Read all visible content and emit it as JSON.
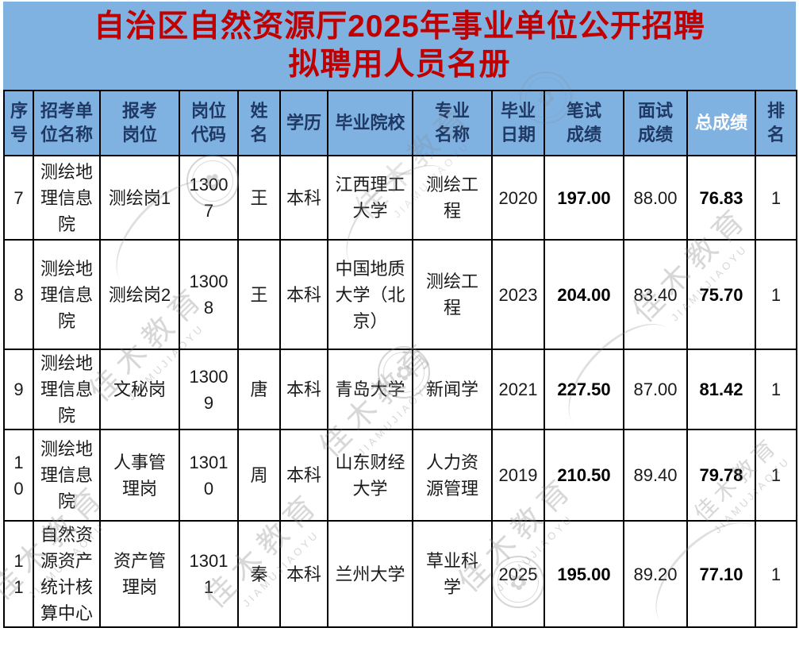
{
  "banner": {
    "line1": "自治区自然资源厅2025年事业单位公开招聘",
    "line2": "拟聘用人员名册"
  },
  "colors": {
    "background": "#7FB1E1",
    "title_text": "#C00000",
    "header_text": "#1F3864",
    "header_highlight_text": "#FFFFFF",
    "border": "#000000"
  },
  "watermark": {
    "cjk": "佳木教育",
    "latin": "JIAMUJIAOYU",
    "flower_icon": "✿"
  },
  "table": {
    "columns": [
      {
        "key": "xuhao",
        "label": "序\n号",
        "highlight": false,
        "bold_values": false
      },
      {
        "key": "unit",
        "label": "招考单\n位名称",
        "highlight": false,
        "bold_values": false
      },
      {
        "key": "position",
        "label": "报考\n岗位",
        "highlight": false,
        "bold_values": false
      },
      {
        "key": "code",
        "label": "岗位\n代码",
        "highlight": false,
        "bold_values": false
      },
      {
        "key": "name",
        "label": "姓名",
        "highlight": false,
        "bold_values": false
      },
      {
        "key": "edu",
        "label": "学历",
        "highlight": false,
        "bold_values": false
      },
      {
        "key": "school",
        "label": "毕业院校",
        "highlight": false,
        "bold_values": false
      },
      {
        "key": "major",
        "label": "专业\n名称",
        "highlight": false,
        "bold_values": false
      },
      {
        "key": "graddate",
        "label": "毕业\n日期",
        "highlight": false,
        "bold_values": false
      },
      {
        "key": "written",
        "label": "笔试\n成绩",
        "highlight": false,
        "bold_values": true
      },
      {
        "key": "interview",
        "label": "面试\n成绩",
        "highlight": false,
        "bold_values": false
      },
      {
        "key": "total",
        "label": "总成绩",
        "highlight": true,
        "bold_values": true
      },
      {
        "key": "rank",
        "label": "排名",
        "highlight": false,
        "bold_values": false
      }
    ],
    "rows": [
      {
        "cells": [
          "7",
          "测绘地理信息院",
          "测绘岗1",
          "13007",
          "王",
          "本科",
          "江西理工大学",
          "测绘工程",
          "2020",
          "197.00",
          "88.00",
          "76.83",
          "1"
        ]
      },
      {
        "cells": [
          "8",
          "测绘地理信息院",
          "测绘岗2",
          "13008",
          "王",
          "本科",
          "中国地质大学（北京）",
          "测绘工程",
          "2023",
          "204.00",
          "83.40",
          "75.70",
          "1"
        ]
      },
      {
        "cells": [
          "9",
          "测绘地理信息院",
          "文秘岗",
          "13009",
          "唐",
          "本科",
          "青岛大学",
          "新闻学",
          "2021",
          "227.50",
          "87.00",
          "81.42",
          "1"
        ]
      },
      {
        "cells": [
          "10",
          "测绘地理信息院",
          "人事管理岗",
          "13010",
          "周",
          "本科",
          "山东财经大学",
          "人力资源管理",
          "2019",
          "210.50",
          "89.40",
          "79.78",
          "1"
        ]
      },
      {
        "cells": [
          "11",
          "自然资源资产统计核算中心",
          "资产管理岗",
          "13011",
          "秦",
          "本科",
          "兰州大学",
          "草业科学",
          "2025",
          "195.00",
          "89.20",
          "77.10",
          "1"
        ]
      }
    ]
  }
}
